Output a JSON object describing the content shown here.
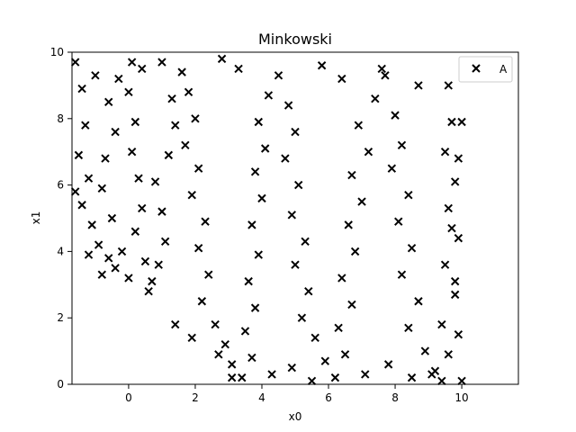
{
  "chart_data": {
    "type": "scatter",
    "title": "Minkowski",
    "xlabel": "x0",
    "ylabel": "x1",
    "xlim": [
      -1.7,
      11.7
    ],
    "ylim": [
      0,
      10
    ],
    "xticks": [
      0,
      2,
      4,
      6,
      8,
      10
    ],
    "yticks": [
      0,
      2,
      4,
      6,
      8,
      10
    ],
    "grid": false,
    "legend": {
      "position": "top-right",
      "entries": [
        "A"
      ]
    },
    "series": [
      {
        "name": "A",
        "marker": "x",
        "color": "#000000",
        "points": [
          [
            -1.6,
            9.7
          ],
          [
            -1.4,
            8.9
          ],
          [
            -1.3,
            7.8
          ],
          [
            -1.5,
            6.9
          ],
          [
            -1.2,
            6.2
          ],
          [
            -1.4,
            5.4
          ],
          [
            -1.1,
            4.8
          ],
          [
            -0.9,
            4.2
          ],
          [
            -0.6,
            3.8
          ],
          [
            -0.4,
            3.5
          ],
          [
            -0.2,
            4.0
          ],
          [
            -0.5,
            5.0
          ],
          [
            -0.8,
            5.9
          ],
          [
            -0.7,
            6.8
          ],
          [
            -0.4,
            7.6
          ],
          [
            -0.6,
            8.5
          ],
          [
            -0.3,
            9.2
          ],
          [
            0.1,
            9.7
          ],
          [
            0.0,
            8.8
          ],
          [
            0.2,
            7.9
          ],
          [
            0.1,
            7.0
          ],
          [
            0.3,
            6.2
          ],
          [
            0.4,
            5.3
          ],
          [
            0.2,
            4.6
          ],
          [
            0.5,
            3.7
          ],
          [
            0.7,
            3.1
          ],
          [
            0.9,
            3.6
          ],
          [
            1.1,
            4.3
          ],
          [
            1.0,
            5.2
          ],
          [
            0.8,
            6.1
          ],
          [
            1.2,
            6.9
          ],
          [
            1.4,
            7.8
          ],
          [
            1.3,
            8.6
          ],
          [
            1.6,
            9.4
          ],
          [
            1.8,
            8.8
          ],
          [
            2.0,
            8.0
          ],
          [
            1.7,
            7.2
          ],
          [
            2.1,
            6.5
          ],
          [
            1.9,
            5.7
          ],
          [
            2.3,
            4.9
          ],
          [
            2.1,
            4.1
          ],
          [
            2.4,
            3.3
          ],
          [
            2.2,
            2.5
          ],
          [
            2.6,
            1.8
          ],
          [
            2.9,
            1.2
          ],
          [
            3.1,
            0.6
          ],
          [
            3.4,
            0.2
          ],
          [
            3.7,
            0.8
          ],
          [
            3.5,
            1.6
          ],
          [
            3.8,
            2.3
          ],
          [
            3.6,
            3.1
          ],
          [
            3.9,
            3.9
          ],
          [
            3.7,
            4.8
          ],
          [
            4.0,
            5.6
          ],
          [
            3.8,
            6.4
          ],
          [
            4.1,
            7.1
          ],
          [
            3.9,
            7.9
          ],
          [
            4.2,
            8.7
          ],
          [
            4.5,
            9.3
          ],
          [
            4.8,
            8.4
          ],
          [
            5.0,
            7.6
          ],
          [
            4.7,
            6.8
          ],
          [
            5.1,
            6.0
          ],
          [
            4.9,
            5.1
          ],
          [
            5.3,
            4.3
          ],
          [
            5.0,
            3.6
          ],
          [
            5.4,
            2.8
          ],
          [
            5.2,
            2.0
          ],
          [
            5.6,
            1.4
          ],
          [
            5.9,
            0.7
          ],
          [
            6.2,
            0.2
          ],
          [
            6.5,
            0.9
          ],
          [
            6.3,
            1.7
          ],
          [
            6.7,
            2.4
          ],
          [
            6.4,
            3.2
          ],
          [
            6.8,
            4.0
          ],
          [
            6.6,
            4.8
          ],
          [
            7.0,
            5.5
          ],
          [
            6.7,
            6.3
          ],
          [
            7.2,
            7.0
          ],
          [
            6.9,
            7.8
          ],
          [
            7.4,
            8.6
          ],
          [
            7.7,
            9.3
          ],
          [
            8.0,
            8.1
          ],
          [
            8.2,
            7.2
          ],
          [
            7.9,
            6.5
          ],
          [
            8.4,
            5.7
          ],
          [
            8.1,
            4.9
          ],
          [
            8.5,
            4.1
          ],
          [
            8.2,
            3.3
          ],
          [
            8.7,
            2.5
          ],
          [
            8.4,
            1.7
          ],
          [
            8.9,
            1.0
          ],
          [
            9.2,
            0.4
          ],
          [
            9.6,
            0.9
          ],
          [
            9.4,
            1.8
          ],
          [
            9.8,
            2.7
          ],
          [
            9.5,
            3.6
          ],
          [
            9.9,
            4.4
          ],
          [
            9.6,
            5.3
          ],
          [
            9.8,
            6.1
          ],
          [
            9.5,
            7.0
          ],
          [
            9.7,
            7.9
          ],
          [
            9.6,
            9.0
          ],
          [
            10.0,
            0.1
          ],
          [
            9.9,
            1.5
          ],
          [
            9.8,
            3.1
          ],
          [
            9.7,
            4.7
          ],
          [
            9.9,
            6.8
          ],
          [
            10.0,
            7.9
          ],
          [
            7.6,
            9.5
          ],
          [
            8.7,
            9.0
          ],
          [
            5.8,
            9.6
          ],
          [
            6.4,
            9.2
          ],
          [
            2.8,
            9.8
          ],
          [
            3.3,
            9.5
          ],
          [
            1.0,
            9.7
          ],
          [
            0.4,
            9.5
          ],
          [
            -1.0,
            9.3
          ],
          [
            -1.6,
            5.8
          ],
          [
            -1.2,
            3.9
          ],
          [
            -0.8,
            3.3
          ],
          [
            0.0,
            3.2
          ],
          [
            0.6,
            2.8
          ],
          [
            1.4,
            1.8
          ],
          [
            1.9,
            1.4
          ],
          [
            2.7,
            0.9
          ],
          [
            3.1,
            0.2
          ],
          [
            4.3,
            0.3
          ],
          [
            4.9,
            0.5
          ],
          [
            5.5,
            0.1
          ],
          [
            7.1,
            0.3
          ],
          [
            7.8,
            0.6
          ],
          [
            8.5,
            0.2
          ],
          [
            9.1,
            0.3
          ],
          [
            9.4,
            0.1
          ]
        ]
      }
    ]
  }
}
